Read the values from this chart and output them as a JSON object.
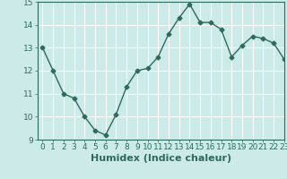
{
  "x": [
    0,
    1,
    2,
    3,
    4,
    5,
    6,
    7,
    8,
    9,
    10,
    11,
    12,
    13,
    14,
    15,
    16,
    17,
    18,
    19,
    20,
    21,
    22,
    23
  ],
  "y": [
    13,
    12,
    11,
    10.8,
    10,
    9.4,
    9.2,
    10.1,
    11.3,
    12,
    12.1,
    12.6,
    13.6,
    14.3,
    14.9,
    14.1,
    14.1,
    13.8,
    12.6,
    13.1,
    13.5,
    13.4,
    13.2,
    12.5
  ],
  "line_color": "#2e6b5e",
  "marker": "D",
  "marker_size": 2.5,
  "bg_color": "#cceae7",
  "grid_color": "#ffffff",
  "xlabel": "Humidex (Indice chaleur)",
  "xlabel_fontsize": 8,
  "ylim": [
    9,
    15
  ],
  "xlim": [
    -0.5,
    23
  ],
  "yticks": [
    9,
    10,
    11,
    12,
    13,
    14,
    15
  ],
  "xticks": [
    0,
    1,
    2,
    3,
    4,
    5,
    6,
    7,
    8,
    9,
    10,
    11,
    12,
    13,
    14,
    15,
    16,
    17,
    18,
    19,
    20,
    21,
    22,
    23
  ],
  "tick_fontsize": 6.5,
  "line_width": 1.0
}
